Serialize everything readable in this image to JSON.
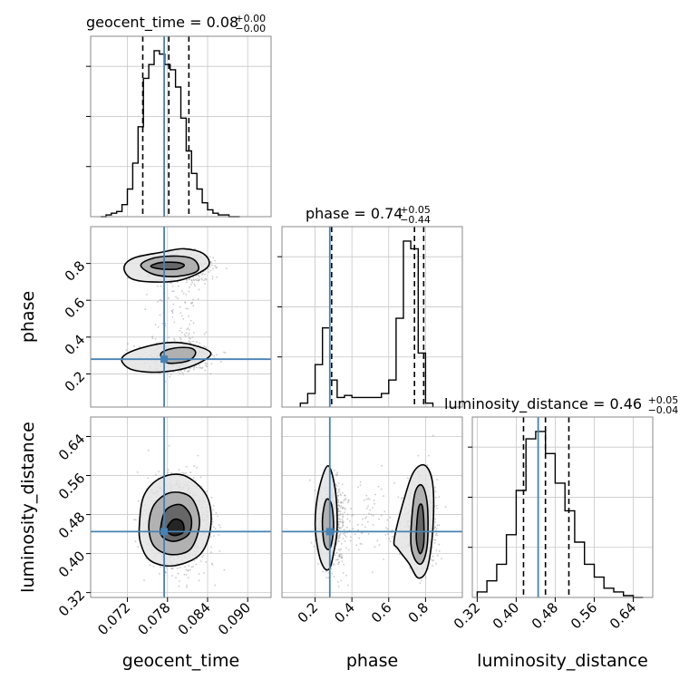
{
  "chart_data": {
    "type": "corner",
    "parameters": [
      "geocent_time",
      "phase",
      "luminosity_distance"
    ],
    "truth": {
      "geocent_time": 0.0775,
      "phase": 0.28,
      "luminosity_distance": 0.445
    },
    "truth_color": "#4682b4",
    "grid": true,
    "titles": [
      {
        "name": "geocent_time",
        "text": "geocent_time = 0.08",
        "sup": "+0.00",
        "sub": "−0.00"
      },
      {
        "name": "phase",
        "text": "phase = 0.74",
        "sup": "+0.05",
        "sub": "−0.44"
      },
      {
        "name": "luminosity_distance",
        "text": "luminosity_distance = 0.46",
        "sup": "+0.05",
        "sub": "−0.04"
      }
    ],
    "axes": {
      "geocent_time": {
        "label": "geocent_time",
        "range": [
          0.0665,
          0.0935
        ],
        "ticks": [
          "0.072",
          "0.078",
          "0.084",
          "0.090"
        ],
        "tick_values": [
          0.072,
          0.078,
          0.084,
          0.09
        ]
      },
      "phase": {
        "label": "phase",
        "range": [
          0.02,
          1.0
        ],
        "ticks": [
          "0.2",
          "0.4",
          "0.6",
          "0.8"
        ],
        "tick_values": [
          0.2,
          0.4,
          0.6,
          0.8
        ]
      },
      "luminosity_distance": {
        "label": "luminosity_distance",
        "range": [
          0.31,
          0.68
        ],
        "ticks": [
          "0.32",
          "0.40",
          "0.48",
          "0.56",
          "0.64"
        ],
        "tick_values": [
          0.32,
          0.4,
          0.48,
          0.56,
          0.64
        ]
      }
    },
    "histograms": {
      "geocent_time": {
        "bin_edges": [
          0.068,
          0.0688,
          0.0696,
          0.0704,
          0.0712,
          0.072,
          0.0728,
          0.0736,
          0.0744,
          0.0752,
          0.076,
          0.0768,
          0.0776,
          0.0784,
          0.0792,
          0.08,
          0.0808,
          0.0816,
          0.0824,
          0.0832,
          0.084,
          0.0848,
          0.0856,
          0.0864,
          0.0872,
          0.088,
          0.0888
        ],
        "counts": [
          0.0,
          0.01,
          0.02,
          0.03,
          0.07,
          0.16,
          0.31,
          0.52,
          0.8,
          0.88,
          0.96,
          0.94,
          0.88,
          0.85,
          0.75,
          0.57,
          0.38,
          0.25,
          0.16,
          0.08,
          0.04,
          0.02,
          0.01,
          0.01,
          0.0,
          0.0
        ],
        "quantiles": [
          0.0743,
          0.0782,
          0.0812
        ]
      },
      "phase": {
        "bin_edges": [
          0.12,
          0.16,
          0.2,
          0.24,
          0.28,
          0.32,
          0.36,
          0.4,
          0.44,
          0.48,
          0.52,
          0.56,
          0.6,
          0.64,
          0.68,
          0.72,
          0.76,
          0.8,
          0.84
        ],
        "counts": [
          0.02,
          0.07,
          0.22,
          0.41,
          0.14,
          0.05,
          0.06,
          0.05,
          0.05,
          0.05,
          0.05,
          0.07,
          0.14,
          0.46,
          0.86,
          0.82,
          0.28,
          0.02
        ],
        "quantiles": [
          0.29,
          0.74,
          0.79
        ]
      },
      "luminosity_distance": {
        "bin_edges": [
          0.32,
          0.34,
          0.36,
          0.38,
          0.4,
          0.42,
          0.44,
          0.46,
          0.48,
          0.5,
          0.52,
          0.54,
          0.56,
          0.58,
          0.6,
          0.62,
          0.64,
          0.66
        ],
        "counts": [
          0.03,
          0.09,
          0.18,
          0.34,
          0.58,
          0.86,
          0.9,
          0.78,
          0.62,
          0.47,
          0.3,
          0.18,
          0.11,
          0.05,
          0.03,
          0.01,
          0.0
        ],
        "quantiles": [
          0.415,
          0.46,
          0.508
        ]
      }
    },
    "contours_2d": {
      "phase_vs_geocent_time": [
        {
          "level": "outer",
          "points": [
            [
              0.0715,
              0.78
            ],
            [
              0.073,
              0.83
            ],
            [
              0.077,
              0.86
            ],
            [
              0.0805,
              0.88
            ],
            [
              0.0835,
              0.85
            ],
            [
              0.084,
              0.78
            ],
            [
              0.08,
              0.71
            ],
            [
              0.0755,
              0.7
            ],
            [
              0.0725,
              0.72
            ]
          ]
        },
        {
          "level": "mid",
          "points": [
            [
              0.074,
              0.79
            ],
            [
              0.076,
              0.83
            ],
            [
              0.0795,
              0.84
            ],
            [
              0.082,
              0.82
            ],
            [
              0.0825,
              0.76
            ],
            [
              0.0795,
              0.73
            ],
            [
              0.076,
              0.74
            ]
          ]
        },
        {
          "level": "inner",
          "points": [
            [
              0.0755,
              0.785
            ],
            [
              0.077,
              0.805
            ],
            [
              0.0795,
              0.805
            ],
            [
              0.0805,
              0.79
            ],
            [
              0.0795,
              0.77
            ],
            [
              0.077,
              0.77
            ]
          ]
        },
        {
          "level": "outer",
          "points": [
            [
              0.0715,
              0.3
            ],
            [
              0.074,
              0.34
            ],
            [
              0.078,
              0.37
            ],
            [
              0.0815,
              0.36
            ],
            [
              0.0845,
              0.31
            ],
            [
              0.0815,
              0.24
            ],
            [
              0.077,
              0.21
            ],
            [
              0.073,
              0.22
            ],
            [
              0.0713,
              0.26
            ]
          ]
        },
        {
          "level": "mid",
          "points": [
            [
              0.077,
              0.31
            ],
            [
              0.079,
              0.34
            ],
            [
              0.0815,
              0.34
            ],
            [
              0.0822,
              0.31
            ],
            [
              0.081,
              0.27
            ],
            [
              0.078,
              0.26
            ]
          ]
        }
      ],
      "luminosity_distance_vs_geocent_time": [
        {
          "level": "outer",
          "points": [
            [
              0.0738,
              0.46
            ],
            [
              0.0745,
              0.52
            ],
            [
              0.077,
              0.555
            ],
            [
              0.0805,
              0.56
            ],
            [
              0.0838,
              0.52
            ],
            [
              0.0845,
              0.46
            ],
            [
              0.083,
              0.4
            ],
            [
              0.079,
              0.375
            ],
            [
              0.0755,
              0.385
            ],
            [
              0.074,
              0.42
            ]
          ]
        },
        {
          "level": "mid",
          "points": [
            [
              0.0752,
              0.455
            ],
            [
              0.076,
              0.5
            ],
            [
              0.0785,
              0.525
            ],
            [
              0.0815,
              0.515
            ],
            [
              0.0828,
              0.465
            ],
            [
              0.0815,
              0.41
            ],
            [
              0.0785,
              0.398
            ],
            [
              0.076,
              0.415
            ]
          ]
        },
        {
          "level": "inner",
          "points": [
            [
              0.077,
              0.455
            ],
            [
              0.0778,
              0.49
            ],
            [
              0.08,
              0.5
            ],
            [
              0.0815,
              0.475
            ],
            [
              0.0812,
              0.44
            ],
            [
              0.079,
              0.425
            ],
            [
              0.0772,
              0.435
            ]
          ]
        },
        {
          "level": "core",
          "points": [
            [
              0.078,
              0.455
            ],
            [
              0.079,
              0.47
            ],
            [
              0.0802,
              0.465
            ],
            [
              0.0804,
              0.445
            ],
            [
              0.0792,
              0.437
            ],
            [
              0.0782,
              0.442
            ]
          ]
        }
      ],
      "luminosity_distance_vs_phase": [
        {
          "level": "outer",
          "points": [
            [
              0.22,
              0.4
            ],
            [
              0.2,
              0.46
            ],
            [
              0.22,
              0.53
            ],
            [
              0.27,
              0.58
            ],
            [
              0.31,
              0.53
            ],
            [
              0.32,
              0.45
            ],
            [
              0.3,
              0.4
            ],
            [
              0.28,
              0.37
            ],
            [
              0.25,
              0.37
            ]
          ]
        },
        {
          "level": "mid",
          "points": [
            [
              0.25,
              0.42
            ],
            [
              0.24,
              0.47
            ],
            [
              0.26,
              0.51
            ],
            [
              0.29,
              0.5
            ],
            [
              0.3,
              0.45
            ],
            [
              0.28,
              0.41
            ]
          ]
        },
        {
          "level": "outer",
          "points": [
            [
              0.63,
              0.43
            ],
            [
              0.69,
              0.52
            ],
            [
              0.74,
              0.57
            ],
            [
              0.8,
              0.58
            ],
            [
              0.84,
              0.54
            ],
            [
              0.84,
              0.45
            ],
            [
              0.81,
              0.37
            ],
            [
              0.76,
              0.35
            ],
            [
              0.71,
              0.38
            ],
            [
              0.65,
              0.41
            ]
          ]
        },
        {
          "level": "mid",
          "points": [
            [
              0.72,
              0.43
            ],
            [
              0.74,
              0.52
            ],
            [
              0.78,
              0.54
            ],
            [
              0.81,
              0.5
            ],
            [
              0.81,
              0.42
            ],
            [
              0.78,
              0.38
            ],
            [
              0.74,
              0.39
            ]
          ]
        },
        {
          "level": "inner",
          "points": [
            [
              0.75,
              0.43
            ],
            [
              0.76,
              0.49
            ],
            [
              0.78,
              0.5
            ],
            [
              0.79,
              0.47
            ],
            [
              0.79,
              0.42
            ],
            [
              0.77,
              0.4
            ]
          ]
        }
      ]
    }
  }
}
